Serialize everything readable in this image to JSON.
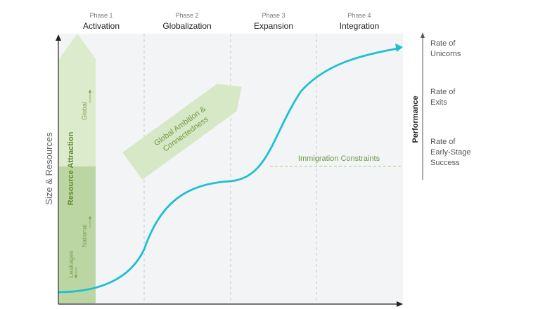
{
  "phases": [
    {
      "number": "Phase 1",
      "name": "Activation"
    },
    {
      "number": "Phase 2",
      "name": "Globalization"
    },
    {
      "number": "Phase 3",
      "name": "Expansion"
    },
    {
      "number": "Phase 4",
      "name": "Integration"
    }
  ],
  "y_axis_label": "Size & Resources",
  "performance_axis_label": "Performance",
  "performance_levels": [
    {
      "line1": "Rate of",
      "line2": "Unicorns",
      "line3": ""
    },
    {
      "line1": "Rate of",
      "line2": "Exits",
      "line3": ""
    },
    {
      "line1": "Rate of",
      "line2": "Early-Stage",
      "line3": "Success"
    }
  ],
  "resource_bar": {
    "title": "Resource Attraction",
    "global_label": "Global",
    "national_label": "National",
    "leakages_label": "Leakages"
  },
  "ambition_arrow": {
    "line1": "Global Ambition &",
    "line2": "Connectedness"
  },
  "constraint_label": "Immigration Constraints",
  "colors": {
    "curve": "#1fbfd2",
    "green_light": "#d7e8c6",
    "green_mid": "#b5d09a",
    "green_text": "#6f9a3f",
    "green_dark_text": "#5a7f2e",
    "panel": "#f3f4f6",
    "axis": "#222222"
  }
}
